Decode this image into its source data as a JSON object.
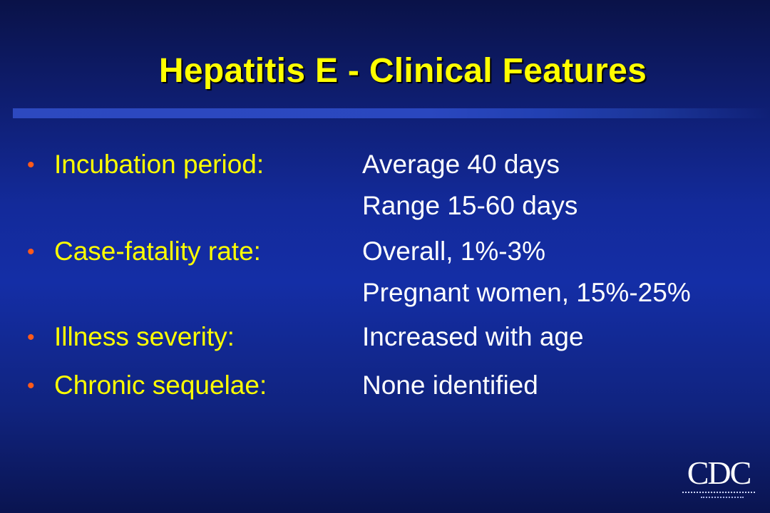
{
  "slide": {
    "title": "Hepatitis E - Clinical Features",
    "bullet_symbol": "•",
    "items": [
      {
        "label": "Incubation period:",
        "values": [
          "Average 40 days",
          "Range 15-60 days"
        ]
      },
      {
        "label": "Case-fatality rate:",
        "values": [
          "Overall, 1%-3%",
          "Pregnant women, 15%-25%"
        ]
      },
      {
        "label": "Illness severity:",
        "values": [
          "Increased with age"
        ]
      },
      {
        "label": "Chronic sequelae:",
        "values": [
          "None identified"
        ]
      }
    ]
  },
  "logo": {
    "text": "CDC"
  },
  "colors": {
    "title": "#ffff00",
    "label": "#ffff00",
    "value": "#ffffff",
    "bullet": "#ff5a1a",
    "background": "#142ea6"
  }
}
